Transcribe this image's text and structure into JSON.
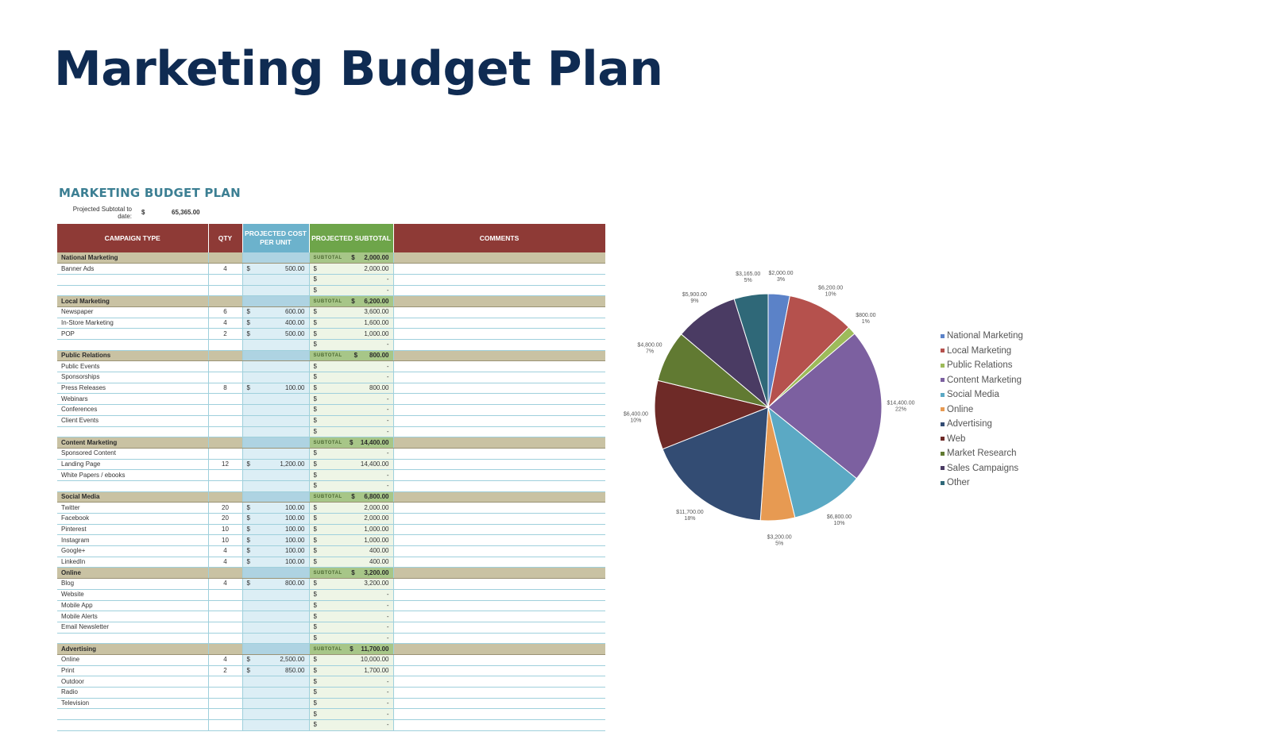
{
  "page": {
    "title": "Marketing Budget Plan"
  },
  "sheet": {
    "title": "MARKETING BUDGET PLAN",
    "projected_label_1": "Projected Subtotal to",
    "projected_label_2": "date:",
    "projected_currency": "$",
    "projected_value": "65,365.00",
    "headers": [
      "CAMPAIGN TYPE",
      "QTY",
      "PROJECTED COST PER UNIT",
      "PROJECTED SUBTOTAL",
      "COMMENTS"
    ],
    "subtotal_label": "SUBTOTAL",
    "rows": [
      {
        "type": "cat",
        "name": "National Marketing",
        "sub": "2,000.00"
      },
      {
        "type": "item",
        "name": "Banner Ads",
        "qty": "4",
        "cost": "500.00",
        "subtotal": "2,000.00"
      },
      {
        "type": "item",
        "name": "",
        "qty": "",
        "cost": "",
        "subtotal": "-"
      },
      {
        "type": "item",
        "name": "",
        "qty": "",
        "cost": "",
        "subtotal": "-"
      },
      {
        "type": "cat",
        "name": "Local Marketing",
        "sub": "6,200.00"
      },
      {
        "type": "item",
        "name": "Newspaper",
        "qty": "6",
        "cost": "600.00",
        "subtotal": "3,600.00"
      },
      {
        "type": "item",
        "name": "In-Store Marketing",
        "qty": "4",
        "cost": "400.00",
        "subtotal": "1,600.00"
      },
      {
        "type": "item",
        "name": "POP",
        "qty": "2",
        "cost": "500.00",
        "subtotal": "1,000.00"
      },
      {
        "type": "item",
        "name": "",
        "qty": "",
        "cost": "",
        "subtotal": "-"
      },
      {
        "type": "cat",
        "name": "Public Relations",
        "sub": "800.00"
      },
      {
        "type": "item",
        "name": "Public Events",
        "qty": "",
        "cost": "",
        "subtotal": "-"
      },
      {
        "type": "item",
        "name": "Sponsorships",
        "qty": "",
        "cost": "",
        "subtotal": "-"
      },
      {
        "type": "item",
        "name": "Press Releases",
        "qty": "8",
        "cost": "100.00",
        "subtotal": "800.00"
      },
      {
        "type": "item",
        "name": "Webinars",
        "qty": "",
        "cost": "",
        "subtotal": "-"
      },
      {
        "type": "item",
        "name": "Conferences",
        "qty": "",
        "cost": "",
        "subtotal": "-"
      },
      {
        "type": "item",
        "name": "Client Events",
        "qty": "",
        "cost": "",
        "subtotal": "-"
      },
      {
        "type": "item",
        "name": "",
        "qty": "",
        "cost": "",
        "subtotal": "-"
      },
      {
        "type": "cat",
        "name": "Content Marketing",
        "sub": "14,400.00"
      },
      {
        "type": "item",
        "name": "Sponsored Content",
        "qty": "",
        "cost": "",
        "subtotal": "-"
      },
      {
        "type": "item",
        "name": "Landing Page",
        "qty": "12",
        "cost": "1,200.00",
        "subtotal": "14,400.00"
      },
      {
        "type": "item",
        "name": "White Papers / ebooks",
        "qty": "",
        "cost": "",
        "subtotal": "-"
      },
      {
        "type": "item",
        "name": "",
        "qty": "",
        "cost": "",
        "subtotal": "-"
      },
      {
        "type": "cat",
        "name": "Social Media",
        "sub": "6,800.00"
      },
      {
        "type": "item",
        "name": "Twitter",
        "qty": "20",
        "cost": "100.00",
        "subtotal": "2,000.00"
      },
      {
        "type": "item",
        "name": "Facebook",
        "qty": "20",
        "cost": "100.00",
        "subtotal": "2,000.00"
      },
      {
        "type": "item",
        "name": "Pinterest",
        "qty": "10",
        "cost": "100.00",
        "subtotal": "1,000.00"
      },
      {
        "type": "item",
        "name": "Instagram",
        "qty": "10",
        "cost": "100.00",
        "subtotal": "1,000.00"
      },
      {
        "type": "item",
        "name": "Google+",
        "qty": "4",
        "cost": "100.00",
        "subtotal": "400.00"
      },
      {
        "type": "item",
        "name": "LinkedIn",
        "qty": "4",
        "cost": "100.00",
        "subtotal": "400.00"
      },
      {
        "type": "cat",
        "name": "Online",
        "sub": "3,200.00"
      },
      {
        "type": "item",
        "name": "Blog",
        "qty": "4",
        "cost": "800.00",
        "subtotal": "3,200.00"
      },
      {
        "type": "item",
        "name": "Website",
        "qty": "",
        "cost": "",
        "subtotal": "-"
      },
      {
        "type": "item",
        "name": "Mobile App",
        "qty": "",
        "cost": "",
        "subtotal": "-"
      },
      {
        "type": "item",
        "name": "Mobile Alerts",
        "qty": "",
        "cost": "",
        "subtotal": "-"
      },
      {
        "type": "item",
        "name": "Email Newsletter",
        "qty": "",
        "cost": "",
        "subtotal": "-"
      },
      {
        "type": "item",
        "name": "",
        "qty": "",
        "cost": "",
        "subtotal": "-"
      },
      {
        "type": "cat",
        "name": "Advertising",
        "sub": "11,700.00"
      },
      {
        "type": "item",
        "name": "Online",
        "qty": "4",
        "cost": "2,500.00",
        "subtotal": "10,000.00"
      },
      {
        "type": "item",
        "name": "Print",
        "qty": "2",
        "cost": "850.00",
        "subtotal": "1,700.00"
      },
      {
        "type": "item",
        "name": "Outdoor",
        "qty": "",
        "cost": "",
        "subtotal": "-"
      },
      {
        "type": "item",
        "name": "Radio",
        "qty": "",
        "cost": "",
        "subtotal": "-"
      },
      {
        "type": "item",
        "name": "Television",
        "qty": "",
        "cost": "",
        "subtotal": "-"
      },
      {
        "type": "item",
        "name": "",
        "qty": "",
        "cost": "",
        "subtotal": "-"
      },
      {
        "type": "item",
        "name": "",
        "qty": "",
        "cost": "",
        "subtotal": "-"
      }
    ]
  },
  "chart_data": {
    "type": "pie",
    "title": "",
    "currency": "$",
    "slices": [
      {
        "name": "National Marketing",
        "value": 2000,
        "label": "$2,000.00",
        "pct": "3%",
        "color": "#5b82c8"
      },
      {
        "name": "Local Marketing",
        "value": 6200,
        "label": "$6,200.00",
        "pct": "10%",
        "color": "#b5514d"
      },
      {
        "name": "Public Relations",
        "value": 800,
        "label": "$800.00",
        "pct": "1%",
        "color": "#9dbb5a"
      },
      {
        "name": "Content Marketing",
        "value": 14400,
        "label": "$14,400.00",
        "pct": "22%",
        "color": "#7c60a0"
      },
      {
        "name": "Social Media",
        "value": 6800,
        "label": "$6,800.00",
        "pct": "10%",
        "color": "#5ba9c4"
      },
      {
        "name": "Online",
        "value": 3200,
        "label": "$3,200.00",
        "pct": "5%",
        "color": "#e79a52"
      },
      {
        "name": "Advertising",
        "value": 11700,
        "label": "$11,700.00",
        "pct": "18%",
        "color": "#334c73"
      },
      {
        "name": "Web",
        "value": 6400,
        "label": "$6,400.00",
        "pct": "10%",
        "color": "#6e2a27"
      },
      {
        "name": "Market Research",
        "value": 4800,
        "label": "$4,800.00",
        "pct": "7%",
        "color": "#617a32"
      },
      {
        "name": "Sales Campaigns",
        "value": 5900,
        "label": "$5,900.00",
        "pct": "9%",
        "color": "#4a3b63"
      },
      {
        "name": "Other",
        "value": 3165,
        "label": "$3,165.00",
        "pct": "5%",
        "color": "#2f6878"
      }
    ],
    "legend_position": "right"
  }
}
